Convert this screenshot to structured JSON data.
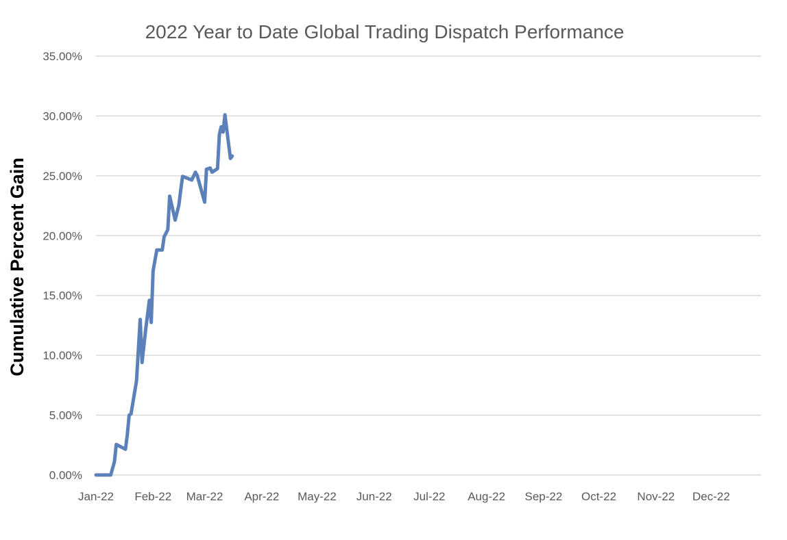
{
  "chart_data": {
    "type": "line",
    "title": "2022 Year to Date Global Trading Dispatch Performance",
    "xlabel": "",
    "ylabel": "Cumulative Percent Gain",
    "ylim": [
      0,
      35
    ],
    "xlim": [
      "2022-01-01",
      "2022-12-28"
    ],
    "grid": true,
    "legend": "none",
    "y_ticks": [
      0,
      5,
      10,
      15,
      20,
      25,
      30,
      35
    ],
    "y_tick_labels": [
      "0.00%",
      "5.00%",
      "10.00%",
      "15.00%",
      "20.00%",
      "25.00%",
      "30.00%",
      "35.00%"
    ],
    "x_ticks": [
      "2022-01-01",
      "2022-02-01",
      "2022-03-01",
      "2022-04-01",
      "2022-05-01",
      "2022-06-01",
      "2022-07-01",
      "2022-08-01",
      "2022-09-01",
      "2022-10-01",
      "2022-11-01",
      "2022-12-01"
    ],
    "x_tick_labels": [
      "Jan-22",
      "Feb-22",
      "Mar-22",
      "Apr-22",
      "May-22",
      "Jun-22",
      "Jul-22",
      "Aug-22",
      "Sep-22",
      "Oct-22",
      "Nov-22",
      "Dec-22"
    ],
    "series": [
      {
        "name": "Cumulative Percent Gain",
        "color": "#5B80BA",
        "x": [
          "2022-01-01",
          "2022-01-09",
          "2022-01-11",
          "2022-01-12",
          "2022-01-17",
          "2022-01-18",
          "2022-01-19",
          "2022-01-20",
          "2022-01-23",
          "2022-01-25",
          "2022-01-26",
          "2022-01-28",
          "2022-01-30",
          "2022-01-31",
          "2022-02-01",
          "2022-02-03",
          "2022-02-06",
          "2022-02-07",
          "2022-02-09",
          "2022-02-10",
          "2022-02-13",
          "2022-02-15",
          "2022-02-16",
          "2022-02-17",
          "2022-02-22",
          "2022-02-24",
          "2022-02-25",
          "2022-03-01",
          "2022-03-02",
          "2022-03-04",
          "2022-03-05",
          "2022-03-08",
          "2022-03-09",
          "2022-03-10",
          "2022-03-11",
          "2022-03-12",
          "2022-03-15",
          "2022-03-16"
        ],
        "values": [
          0.0,
          0.0,
          1.1,
          2.55,
          2.15,
          3.35,
          5.0,
          5.1,
          7.85,
          13.0,
          9.4,
          12.15,
          14.6,
          12.75,
          17.05,
          18.8,
          18.8,
          19.9,
          20.5,
          23.3,
          21.3,
          22.55,
          23.8,
          24.95,
          24.65,
          25.3,
          25.0,
          22.8,
          25.55,
          25.65,
          25.3,
          25.6,
          28.45,
          29.1,
          28.65,
          30.1,
          26.45,
          26.65
        ]
      }
    ]
  }
}
